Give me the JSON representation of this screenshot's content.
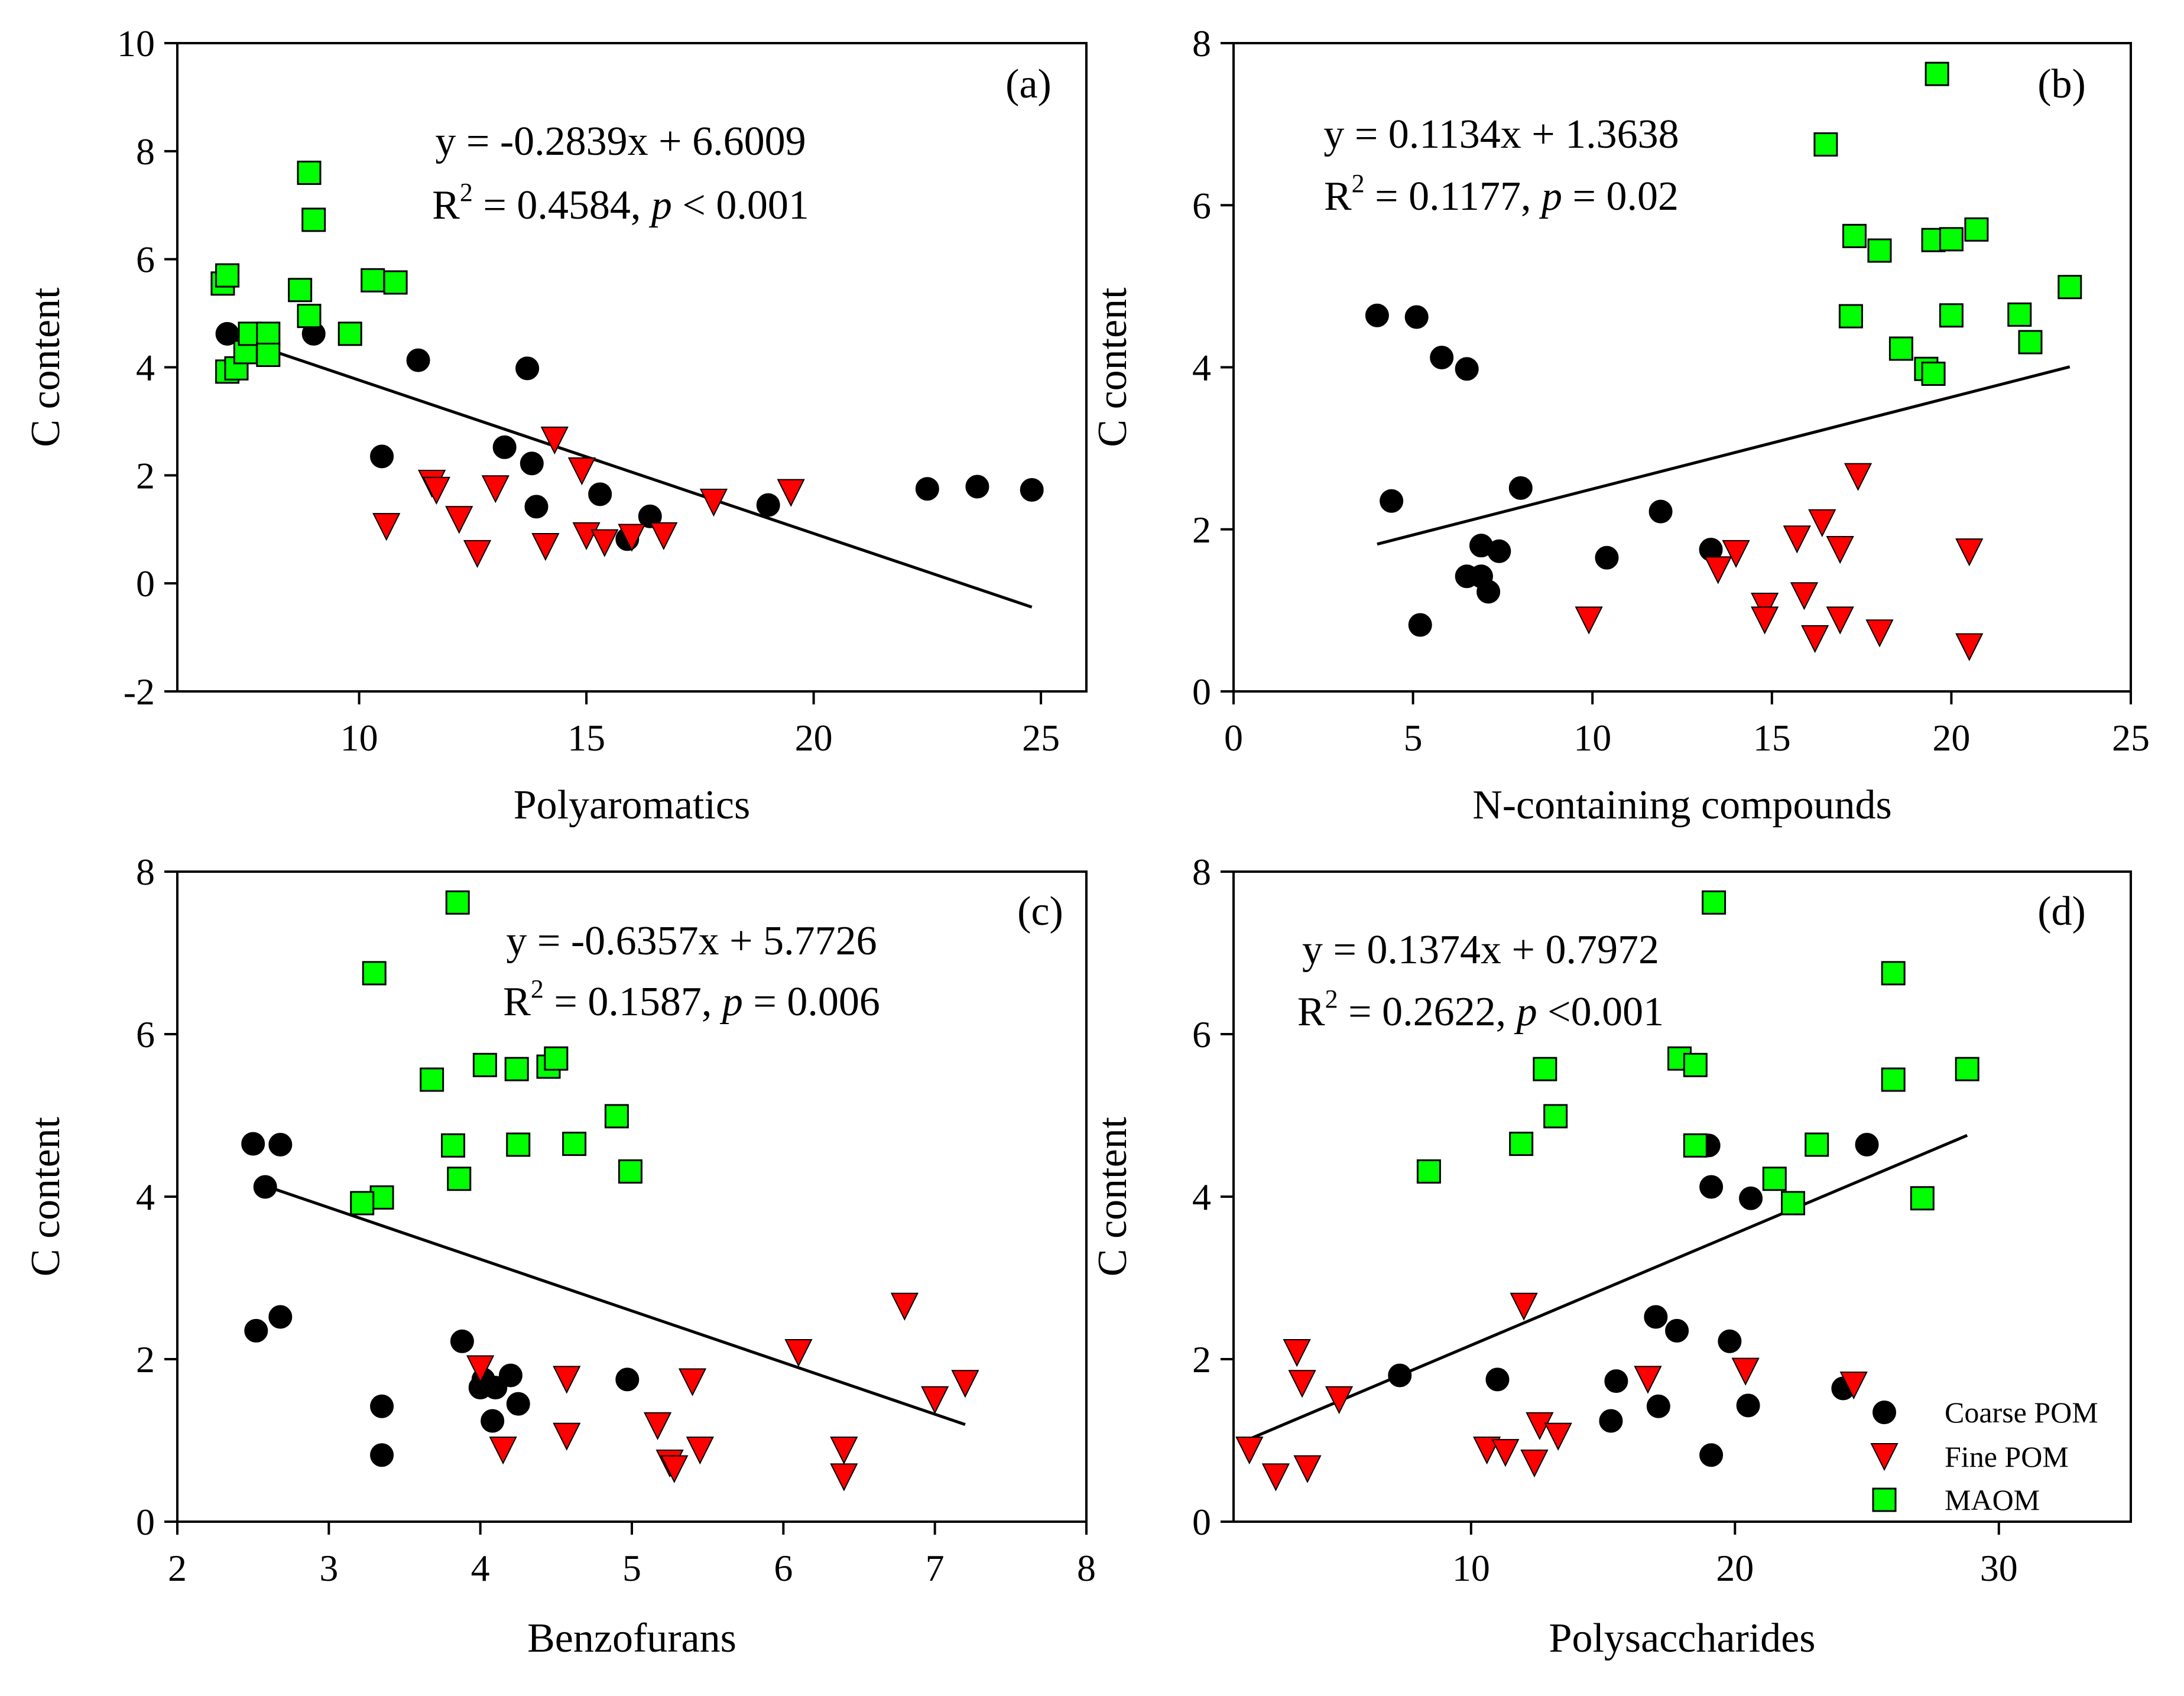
{
  "chart_data": [
    {
      "type": "scatter",
      "panel_label": "(a)",
      "xlabel": "Polyaromatics",
      "ylabel": "C content",
      "xlim": [
        6,
        26
      ],
      "ylim": [
        -2,
        10
      ],
      "xticks": [
        10,
        15,
        20,
        25
      ],
      "yticks": [
        -2,
        0,
        2,
        4,
        6,
        8,
        10
      ],
      "equation": "y = -0.2839x + 6.6009",
      "r2_prefix": "R",
      "r2_sup": "2",
      "r2_value": " = 0.4584, ",
      "p_symbol": "p",
      "p_value": " < 0.001",
      "fit": {
        "slope": -0.2839,
        "intercept": 6.6009,
        "x_range": [
          7.2,
          24.8
        ]
      },
      "series": [
        {
          "name": "Coarse POM",
          "x": [
            7.1,
            9.0,
            11.3,
            13.7,
            10.5,
            13.2,
            13.8,
            13.9,
            15.3,
            16.4,
            15.9,
            19.0,
            22.5,
            23.6,
            24.8
          ],
          "y": [
            4.62,
            4.62,
            4.13,
            3.98,
            2.35,
            2.52,
            2.22,
            1.42,
            1.65,
            1.24,
            0.82,
            1.45,
            1.75,
            1.79,
            1.73
          ]
        },
        {
          "name": "Fine POM",
          "x": [
            14.3,
            11.6,
            11.7,
            13.0,
            14.9,
            10.6,
            12.2,
            12.6,
            14.1,
            15.0,
            15.4,
            16.0,
            16.7,
            17.8,
            19.5
          ],
          "y": [
            2.65,
            1.85,
            1.72,
            1.75,
            2.08,
            1.05,
            1.18,
            0.55,
            0.68,
            0.88,
            0.75,
            0.85,
            0.88,
            1.5,
            1.68
          ]
        },
        {
          "name": "MAOM",
          "x": [
            7.0,
            7.1,
            7.1,
            7.3,
            7.5,
            7.6,
            8.0,
            8.0,
            8.7,
            8.9,
            8.9,
            9.0,
            9.8,
            10.3,
            10.8
          ],
          "y": [
            5.55,
            5.7,
            3.92,
            3.98,
            4.28,
            4.62,
            4.62,
            4.23,
            5.43,
            4.95,
            7.6,
            6.73,
            4.62,
            5.61,
            5.57
          ]
        }
      ]
    },
    {
      "type": "scatter",
      "panel_label": "(b)",
      "xlabel": "N-containing compounds",
      "ylabel": "C content",
      "xlim": [
        0,
        25
      ],
      "ylim": [
        0,
        8
      ],
      "xticks": [
        0,
        5,
        10,
        15,
        20,
        25
      ],
      "yticks": [
        0,
        2,
        4,
        6,
        8
      ],
      "equation": "y = 0.1134x + 1.3638",
      "r2_prefix": "R",
      "r2_sup": "2",
      "r2_value": " = 0.1177, ",
      "p_symbol": "p",
      "p_value": " = 0.02",
      "fit": {
        "slope": 0.1134,
        "intercept": 1.3638,
        "x_range": [
          4.0,
          23.3
        ]
      },
      "series": [
        {
          "name": "Coarse POM",
          "x": [
            4.0,
            5.1,
            5.8,
            6.5,
            4.4,
            8.0,
            6.9,
            7.4,
            6.5,
            6.9,
            7.1,
            5.2,
            10.4,
            11.9,
            13.3
          ],
          "y": [
            4.64,
            4.62,
            4.12,
            3.98,
            2.35,
            2.51,
            1.8,
            1.73,
            1.42,
            1.42,
            1.23,
            0.82,
            1.65,
            2.22,
            1.75
          ]
        },
        {
          "name": "Fine POM",
          "x": [
            17.4,
            16.4,
            15.7,
            16.9,
            14.0,
            13.5,
            14.8,
            15.9,
            14.8,
            16.9,
            9.9,
            16.2,
            18.0,
            20.5,
            20.5
          ],
          "y": [
            2.65,
            2.08,
            1.88,
            1.75,
            1.7,
            1.5,
            1.05,
            1.18,
            0.88,
            0.88,
            0.88,
            0.65,
            0.72,
            0.55,
            1.72
          ]
        },
        {
          "name": "MAOM",
          "x": [
            19.6,
            16.5,
            17.3,
            18.0,
            19.5,
            20.0,
            20.7,
            17.2,
            20.0,
            21.9,
            22.2,
            23.3,
            18.6,
            19.3,
            19.5
          ],
          "y": [
            7.62,
            6.75,
            5.62,
            5.44,
            5.57,
            5.58,
            5.7,
            4.63,
            4.64,
            4.65,
            4.31,
            4.99,
            4.23,
            3.98,
            3.92
          ]
        }
      ]
    },
    {
      "type": "scatter",
      "panel_label": "(c)",
      "xlabel": "Benzofurans",
      "ylabel": "C content",
      "xlim": [
        2,
        8
      ],
      "ylim": [
        0,
        8
      ],
      "xticks": [
        2,
        3,
        4,
        5,
        6,
        7,
        8
      ],
      "yticks": [
        0,
        2,
        4,
        6,
        8
      ],
      "equation": "y = -0.6357x + 5.7726",
      "r2_prefix": "R",
      "r2_sup": "2",
      "r2_value": " = 0.1587, ",
      "p_symbol": "p",
      "p_value": " = 0.006",
      "fit": {
        "slope": -0.6357,
        "intercept": 5.7726,
        "x_range": [
          2.6,
          7.2
        ]
      },
      "series": [
        {
          "name": "Coarse POM",
          "x": [
            2.5,
            2.68,
            2.58,
            2.52,
            2.68,
            3.35,
            3.35,
            3.88,
            4.0,
            4.08,
            4.2,
            4.25,
            4.97,
            4.02,
            4.1
          ],
          "y": [
            4.65,
            4.64,
            4.12,
            2.35,
            2.52,
            1.42,
            0.82,
            2.22,
            1.65,
            1.24,
            1.8,
            1.45,
            1.75,
            1.75,
            1.65
          ]
        },
        {
          "name": "Fine POM",
          "x": [
            6.8,
            6.1,
            4.0,
            4.57,
            5.4,
            7.2,
            7.0,
            5.17,
            4.57,
            4.15,
            5.25,
            5.45,
            6.4,
            5.28,
            6.4
          ],
          "y": [
            2.65,
            2.08,
            1.88,
            1.75,
            1.72,
            1.7,
            1.5,
            1.18,
            1.05,
            0.88,
            0.72,
            0.88,
            0.88,
            0.65,
            0.55
          ]
        },
        {
          "name": "MAOM",
          "x": [
            3.85,
            3.3,
            3.68,
            4.03,
            4.24,
            4.45,
            4.5,
            3.82,
            4.25,
            4.62,
            4.9,
            4.99,
            3.86,
            3.35,
            3.22
          ],
          "y": [
            7.62,
            6.75,
            5.44,
            5.62,
            5.57,
            5.6,
            5.7,
            4.63,
            4.64,
            4.65,
            4.99,
            4.31,
            4.22,
            3.99,
            3.92
          ]
        }
      ]
    },
    {
      "type": "scatter",
      "panel_label": "(d)",
      "xlabel": "Polysaccharides",
      "ylabel": "C content",
      "xlim": [
        1,
        35
      ],
      "ylim": [
        0,
        8
      ],
      "xticks": [
        10,
        20,
        30
      ],
      "yticks": [
        0,
        2,
        4,
        6,
        8
      ],
      "equation": "y = 0.1374x + 0.7972",
      "r2_prefix": "R",
      "r2_sup": "2",
      "r2_value": " = 0.2622, ",
      "p_symbol": "p",
      "p_value": " <0.001",
      "fit": {
        "slope": 0.1374,
        "intercept": 0.7972,
        "x_range": [
          1.6,
          28.8
        ]
      },
      "series": [
        {
          "name": "Coarse POM",
          "x": [
            19.0,
            25.0,
            19.1,
            20.6,
            17.0,
            17.8,
            19.8,
            11.0,
            15.5,
            7.3,
            24.1,
            17.1,
            20.5,
            15.3,
            19.1
          ],
          "y": [
            4.63,
            4.64,
            4.12,
            3.98,
            2.52,
            2.35,
            2.22,
            1.75,
            1.73,
            1.8,
            1.64,
            1.42,
            1.43,
            1.24,
            0.82
          ]
        },
        {
          "name": "Fine POM",
          "x": [
            12.0,
            3.4,
            3.6,
            5.0,
            16.7,
            20.4,
            24.5,
            1.6,
            10.6,
            11.3,
            12.6,
            13.3,
            12.4,
            2.6,
            3.8
          ],
          "y": [
            2.65,
            2.08,
            1.7,
            1.5,
            1.75,
            1.85,
            1.68,
            0.88,
            0.88,
            0.85,
            1.18,
            1.05,
            0.72,
            0.55,
            0.65
          ]
        },
        {
          "name": "MAOM",
          "x": [
            19.2,
            26.0,
            12.8,
            17.9,
            18.5,
            26.0,
            28.8,
            11.9,
            13.2,
            18.5,
            21.5,
            23.1,
            22.2,
            27.1,
            8.4
          ],
          "y": [
            7.62,
            6.75,
            5.57,
            5.7,
            5.62,
            5.44,
            5.57,
            4.65,
            4.99,
            4.63,
            4.22,
            4.64,
            3.92,
            3.98,
            4.31
          ]
        }
      ]
    }
  ],
  "legend": {
    "panel": 3,
    "items": [
      {
        "name": "Coarse POM",
        "marker": "circle",
        "color": "#000000"
      },
      {
        "name": "Fine POM",
        "marker": "triangle-down",
        "color": "#ff0000"
      },
      {
        "name": "MAOM",
        "marker": "square",
        "color": "#00ff00"
      }
    ]
  },
  "style": {
    "series_markers": [
      "circle",
      "triangle-down",
      "square"
    ],
    "series_colors": [
      "#000000",
      "#ff0000",
      "#00ff00"
    ],
    "marker_stroke": "#000000",
    "line_color": "#000000"
  }
}
